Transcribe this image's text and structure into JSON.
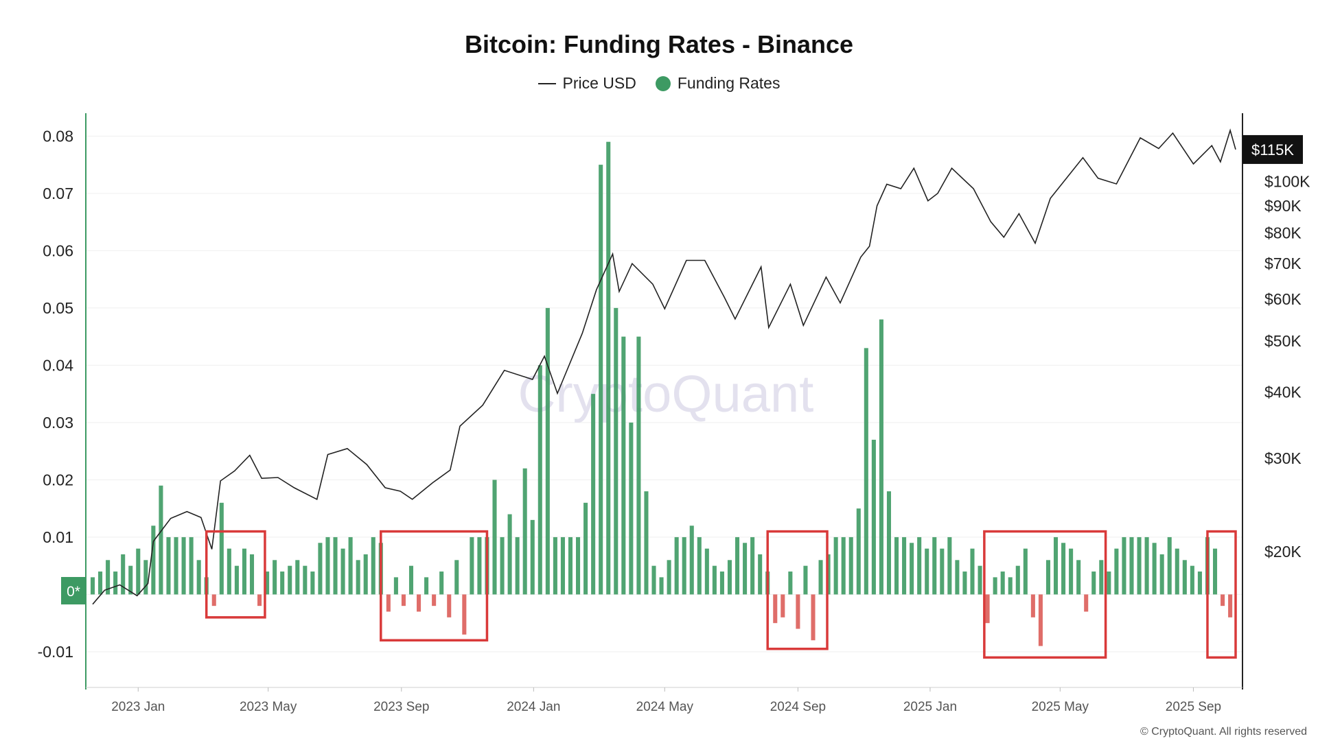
{
  "chart_data": {
    "type": "bar",
    "title": "Bitcoin: Funding Rates - Binance",
    "legend": [
      {
        "name": "Price USD",
        "symbol": "line",
        "color": "#222222"
      },
      {
        "name": "Funding Rates",
        "symbol": "dot",
        "color": "#3d9a63"
      }
    ],
    "legend_placement": "top-center",
    "watermark": "CryptoQuant",
    "copyright": "© CryptoQuant. All rights reserved",
    "zero_badge": "0*",
    "y_left": {
      "ylim": [
        -0.013,
        0.081
      ],
      "ticks": [
        0.08,
        0.07,
        0.06,
        0.05,
        0.04,
        0.03,
        0.02,
        0.01,
        0,
        -0.01
      ],
      "tick_labels": [
        "0.08",
        "0.07",
        "0.06",
        "0.05",
        "0.04",
        "0.03",
        "0.02",
        "0.01",
        "0",
        "-0.01"
      ]
    },
    "y_right": {
      "scale": "log",
      "ylim": [
        12000,
        125000
      ],
      "ticks": [
        20000,
        30000,
        40000,
        50000,
        60000,
        70000,
        80000,
        90000,
        100000
      ],
      "tick_labels": [
        "$20K",
        "$30K",
        "$40K",
        "$50K",
        "$60K",
        "$70K",
        "$80K",
        "$90K",
        "$100K"
      ],
      "current_label": "$115K",
      "current_value": 115000
    },
    "x_axis": {
      "start": "2022-11-20",
      "end": "2025-10-10",
      "ticks": [
        "2023-01-01",
        "2023-05-01",
        "2023-09-01",
        "2024-01-01",
        "2024-05-01",
        "2024-09-01",
        "2025-01-01",
        "2025-05-01",
        "2025-09-01"
      ],
      "tick_labels": [
        "2023 Jan",
        "2023 May",
        "2023 Sep",
        "2024 Jan",
        "2024 May",
        "2024 Sep",
        "2025 Jan",
        "2025 May",
        "2025 Sep"
      ]
    },
    "colors": {
      "positive": "#3d9a63",
      "negative": "#d9534f",
      "price": "#222222",
      "highlight": "#d93a3a"
    },
    "grid": true,
    "funding_rates": [
      [
        "2022-11-20",
        0.003
      ],
      [
        "2022-11-27",
        0.004
      ],
      [
        "2022-12-04",
        0.006
      ],
      [
        "2022-12-11",
        0.004
      ],
      [
        "2022-12-18",
        0.007
      ],
      [
        "2022-12-25",
        0.005
      ],
      [
        "2023-01-01",
        0.008
      ],
      [
        "2023-01-08",
        0.006
      ],
      [
        "2023-01-15",
        0.012
      ],
      [
        "2023-01-22",
        0.019
      ],
      [
        "2023-01-29",
        0.01
      ],
      [
        "2023-02-05",
        0.01
      ],
      [
        "2023-02-12",
        0.01
      ],
      [
        "2023-02-19",
        0.01
      ],
      [
        "2023-02-26",
        0.006
      ],
      [
        "2023-03-05",
        0.003
      ],
      [
        "2023-03-12",
        -0.002
      ],
      [
        "2023-03-19",
        0.016
      ],
      [
        "2023-03-26",
        0.008
      ],
      [
        "2023-04-02",
        0.005
      ],
      [
        "2023-04-09",
        0.008
      ],
      [
        "2023-04-16",
        0.007
      ],
      [
        "2023-04-23",
        -0.002
      ],
      [
        "2023-04-30",
        0.004
      ],
      [
        "2023-05-07",
        0.006
      ],
      [
        "2023-05-14",
        0.004
      ],
      [
        "2023-05-21",
        0.005
      ],
      [
        "2023-05-28",
        0.006
      ],
      [
        "2023-06-04",
        0.005
      ],
      [
        "2023-06-11",
        0.004
      ],
      [
        "2023-06-18",
        0.009
      ],
      [
        "2023-06-25",
        0.01
      ],
      [
        "2023-07-02",
        0.01
      ],
      [
        "2023-07-09",
        0.008
      ],
      [
        "2023-07-16",
        0.01
      ],
      [
        "2023-07-23",
        0.006
      ],
      [
        "2023-07-30",
        0.007
      ],
      [
        "2023-08-06",
        0.01
      ],
      [
        "2023-08-13",
        0.009
      ],
      [
        "2023-08-20",
        -0.003
      ],
      [
        "2023-08-27",
        0.003
      ],
      [
        "2023-09-03",
        -0.002
      ],
      [
        "2023-09-10",
        0.005
      ],
      [
        "2023-09-17",
        -0.003
      ],
      [
        "2023-09-24",
        0.003
      ],
      [
        "2023-10-01",
        -0.002
      ],
      [
        "2023-10-08",
        0.004
      ],
      [
        "2023-10-15",
        -0.004
      ],
      [
        "2023-10-22",
        0.006
      ],
      [
        "2023-10-29",
        -0.007
      ],
      [
        "2023-11-05",
        0.01
      ],
      [
        "2023-11-12",
        0.01
      ],
      [
        "2023-11-19",
        0.01
      ],
      [
        "2023-11-26",
        0.02
      ],
      [
        "2023-12-03",
        0.01
      ],
      [
        "2023-12-10",
        0.014
      ],
      [
        "2023-12-17",
        0.01
      ],
      [
        "2023-12-24",
        0.022
      ],
      [
        "2023-12-31",
        0.013
      ],
      [
        "2024-01-07",
        0.04
      ],
      [
        "2024-01-14",
        0.05
      ],
      [
        "2024-01-21",
        0.01
      ],
      [
        "2024-01-28",
        0.01
      ],
      [
        "2024-02-04",
        0.01
      ],
      [
        "2024-02-11",
        0.01
      ],
      [
        "2024-02-18",
        0.016
      ],
      [
        "2024-02-25",
        0.035
      ],
      [
        "2024-03-03",
        0.075
      ],
      [
        "2024-03-10",
        0.079
      ],
      [
        "2024-03-17",
        0.05
      ],
      [
        "2024-03-24",
        0.045
      ],
      [
        "2024-03-31",
        0.03
      ],
      [
        "2024-04-07",
        0.045
      ],
      [
        "2024-04-14",
        0.018
      ],
      [
        "2024-04-21",
        0.005
      ],
      [
        "2024-04-28",
        0.003
      ],
      [
        "2024-05-05",
        0.006
      ],
      [
        "2024-05-12",
        0.01
      ],
      [
        "2024-05-19",
        0.01
      ],
      [
        "2024-05-26",
        0.012
      ],
      [
        "2024-06-02",
        0.01
      ],
      [
        "2024-06-09",
        0.008
      ],
      [
        "2024-06-16",
        0.005
      ],
      [
        "2024-06-23",
        0.004
      ],
      [
        "2024-06-30",
        0.006
      ],
      [
        "2024-07-07",
        0.01
      ],
      [
        "2024-07-14",
        0.009
      ],
      [
        "2024-07-21",
        0.01
      ],
      [
        "2024-07-28",
        0.007
      ],
      [
        "2024-08-04",
        0.004
      ],
      [
        "2024-08-11",
        -0.005
      ],
      [
        "2024-08-18",
        -0.004
      ],
      [
        "2024-08-25",
        0.004
      ],
      [
        "2024-09-01",
        -0.006
      ],
      [
        "2024-09-08",
        0.005
      ],
      [
        "2024-09-15",
        -0.008
      ],
      [
        "2024-09-22",
        0.006
      ],
      [
        "2024-09-29",
        0.007
      ],
      [
        "2024-10-06",
        0.01
      ],
      [
        "2024-10-13",
        0.01
      ],
      [
        "2024-10-20",
        0.01
      ],
      [
        "2024-10-27",
        0.015
      ],
      [
        "2024-11-03",
        0.043
      ],
      [
        "2024-11-10",
        0.027
      ],
      [
        "2024-11-17",
        0.048
      ],
      [
        "2024-11-24",
        0.018
      ],
      [
        "2024-12-01",
        0.01
      ],
      [
        "2024-12-08",
        0.01
      ],
      [
        "2024-12-15",
        0.009
      ],
      [
        "2024-12-22",
        0.01
      ],
      [
        "2024-12-29",
        0.008
      ],
      [
        "2025-01-05",
        0.01
      ],
      [
        "2025-01-12",
        0.008
      ],
      [
        "2025-01-19",
        0.01
      ],
      [
        "2025-01-26",
        0.006
      ],
      [
        "2025-02-02",
        0.004
      ],
      [
        "2025-02-09",
        0.008
      ],
      [
        "2025-02-16",
        0.005
      ],
      [
        "2025-02-23",
        -0.005
      ],
      [
        "2025-03-02",
        0.003
      ],
      [
        "2025-03-09",
        0.004
      ],
      [
        "2025-03-16",
        0.003
      ],
      [
        "2025-03-23",
        0.005
      ],
      [
        "2025-03-30",
        0.008
      ],
      [
        "2025-04-06",
        -0.004
      ],
      [
        "2025-04-13",
        -0.009
      ],
      [
        "2025-04-20",
        0.006
      ],
      [
        "2025-04-27",
        0.01
      ],
      [
        "2025-05-04",
        0.009
      ],
      [
        "2025-05-11",
        0.008
      ],
      [
        "2025-05-18",
        0.006
      ],
      [
        "2025-05-25",
        -0.003
      ],
      [
        "2025-06-01",
        0.004
      ],
      [
        "2025-06-08",
        0.006
      ],
      [
        "2025-06-15",
        0.004
      ],
      [
        "2025-06-22",
        0.008
      ],
      [
        "2025-06-29",
        0.01
      ],
      [
        "2025-07-06",
        0.01
      ],
      [
        "2025-07-13",
        0.01
      ],
      [
        "2025-07-20",
        0.01
      ],
      [
        "2025-07-27",
        0.009
      ],
      [
        "2025-08-03",
        0.007
      ],
      [
        "2025-08-10",
        0.01
      ],
      [
        "2025-08-17",
        0.008
      ],
      [
        "2025-08-24",
        0.006
      ],
      [
        "2025-08-31",
        0.005
      ],
      [
        "2025-09-07",
        0.004
      ],
      [
        "2025-09-14",
        0.01
      ],
      [
        "2025-09-21",
        0.008
      ],
      [
        "2025-09-28",
        -0.002
      ],
      [
        "2025-10-05",
        -0.004
      ]
    ],
    "price_usd": [
      [
        "2022-11-20",
        15900
      ],
      [
        "2022-12-01",
        16900
      ],
      [
        "2022-12-15",
        17300
      ],
      [
        "2022-12-31",
        16500
      ],
      [
        "2023-01-10",
        17400
      ],
      [
        "2023-01-15",
        20900
      ],
      [
        "2023-01-31",
        23100
      ],
      [
        "2023-02-15",
        23800
      ],
      [
        "2023-02-28",
        23200
      ],
      [
        "2023-03-10",
        20200
      ],
      [
        "2023-03-18",
        27200
      ],
      [
        "2023-03-31",
        28400
      ],
      [
        "2023-04-14",
        30400
      ],
      [
        "2023-04-25",
        27500
      ],
      [
        "2023-05-10",
        27600
      ],
      [
        "2023-05-25",
        26400
      ],
      [
        "2023-06-15",
        25100
      ],
      [
        "2023-06-25",
        30500
      ],
      [
        "2023-07-13",
        31300
      ],
      [
        "2023-07-31",
        29200
      ],
      [
        "2023-08-17",
        26400
      ],
      [
        "2023-08-31",
        26000
      ],
      [
        "2023-09-11",
        25100
      ],
      [
        "2023-09-30",
        27000
      ],
      [
        "2023-10-16",
        28500
      ],
      [
        "2023-10-25",
        34500
      ],
      [
        "2023-11-15",
        37800
      ],
      [
        "2023-12-05",
        44000
      ],
      [
        "2023-12-31",
        42300
      ],
      [
        "2024-01-11",
        46800
      ],
      [
        "2024-01-23",
        39800
      ],
      [
        "2024-02-15",
        51700
      ],
      [
        "2024-02-28",
        62500
      ],
      [
        "2024-03-14",
        73000
      ],
      [
        "2024-03-20",
        62000
      ],
      [
        "2024-04-01",
        70000
      ],
      [
        "2024-04-20",
        64000
      ],
      [
        "2024-05-01",
        57500
      ],
      [
        "2024-05-21",
        71000
      ],
      [
        "2024-06-07",
        71000
      ],
      [
        "2024-06-25",
        60500
      ],
      [
        "2024-07-05",
        55000
      ],
      [
        "2024-07-29",
        69000
      ],
      [
        "2024-08-05",
        53000
      ],
      [
        "2024-08-25",
        64000
      ],
      [
        "2024-09-06",
        53500
      ],
      [
        "2024-09-27",
        66000
      ],
      [
        "2024-10-10",
        59000
      ],
      [
        "2024-10-29",
        72000
      ],
      [
        "2024-11-06",
        75500
      ],
      [
        "2024-11-13",
        90000
      ],
      [
        "2024-11-22",
        98900
      ],
      [
        "2024-12-05",
        97000
      ],
      [
        "2024-12-17",
        106000
      ],
      [
        "2024-12-30",
        92000
      ],
      [
        "2025-01-08",
        95000
      ],
      [
        "2025-01-21",
        106000
      ],
      [
        "2025-02-10",
        97000
      ],
      [
        "2025-02-26",
        84000
      ],
      [
        "2025-03-10",
        78500
      ],
      [
        "2025-03-24",
        87000
      ],
      [
        "2025-04-08",
        76500
      ],
      [
        "2025-04-22",
        93000
      ],
      [
        "2025-05-22",
        111000
      ],
      [
        "2025-06-05",
        101500
      ],
      [
        "2025-06-22",
        99000
      ],
      [
        "2025-07-14",
        121000
      ],
      [
        "2025-07-31",
        115500
      ],
      [
        "2025-08-13",
        123500
      ],
      [
        "2025-09-01",
        108000
      ],
      [
        "2025-09-18",
        117000
      ],
      [
        "2025-09-26",
        109000
      ],
      [
        "2025-10-05",
        125000
      ],
      [
        "2025-10-10",
        115000
      ]
    ],
    "highlight_ranges": [
      {
        "start": "2023-03-05",
        "end": "2023-04-28",
        "ymin": -0.004,
        "ymax": 0.011
      },
      {
        "start": "2023-08-13",
        "end": "2023-11-19",
        "ymin": -0.008,
        "ymax": 0.011
      },
      {
        "start": "2024-08-04",
        "end": "2024-09-28",
        "ymin": -0.0095,
        "ymax": 0.011
      },
      {
        "start": "2025-02-20",
        "end": "2025-06-12",
        "ymin": -0.011,
        "ymax": 0.011
      },
      {
        "start": "2025-09-14",
        "end": "2025-10-10",
        "ymin": -0.011,
        "ymax": 0.011
      }
    ]
  }
}
